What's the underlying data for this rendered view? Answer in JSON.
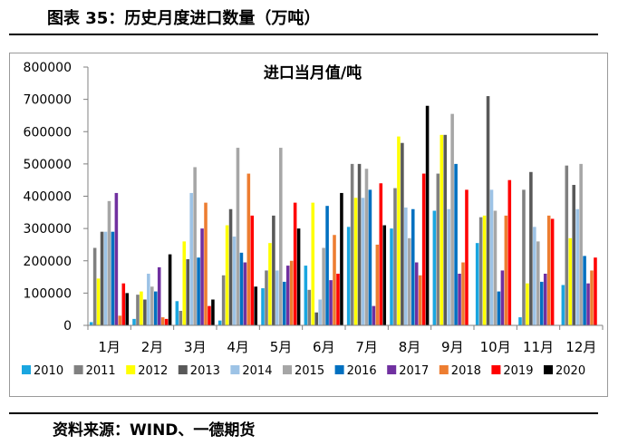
{
  "figure_title": "图表 35：历史月度进口数量（万吨）",
  "source": "资料来源：WIND、一德期货",
  "chart_data": {
    "type": "bar",
    "title": "进口当月值/吨",
    "xlabel": "",
    "ylabel": "",
    "ylim": [
      0,
      800000
    ],
    "yticks": [
      "0",
      "100000",
      "200000",
      "300000",
      "400000",
      "500000",
      "600000",
      "700000",
      "800000"
    ],
    "grid": false,
    "legend_position": "bottom",
    "categories": [
      "1月",
      "2月",
      "3月",
      "4月",
      "5月",
      "6月",
      "7月",
      "8月",
      "9月",
      "10月",
      "11月",
      "12月"
    ],
    "series": [
      {
        "name": "2010",
        "color": "#1aa6e0",
        "values": [
          10000,
          20000,
          75000,
          15000,
          115000,
          185000,
          305000,
          300000,
          355000,
          255000,
          25000,
          125000
        ]
      },
      {
        "name": "2011",
        "color": "#808080",
        "values": [
          240000,
          95000,
          45000,
          155000,
          170000,
          110000,
          500000,
          425000,
          470000,
          335000,
          420000,
          495000
        ]
      },
      {
        "name": "2012",
        "color": "#ffff00",
        "values": [
          145000,
          105000,
          260000,
          310000,
          255000,
          380000,
          395000,
          585000,
          590000,
          340000,
          130000,
          270000
        ]
      },
      {
        "name": "2013",
        "color": "#595959",
        "values": [
          290000,
          80000,
          205000,
          360000,
          340000,
          40000,
          500000,
          565000,
          590000,
          710000,
          475000,
          435000
        ]
      },
      {
        "name": "2014",
        "color": "#9dc3e6",
        "values": [
          290000,
          160000,
          410000,
          275000,
          170000,
          80000,
          395000,
          365000,
          360000,
          420000,
          305000,
          360000
        ]
      },
      {
        "name": "2015",
        "color": "#a6a6a6",
        "values": [
          385000,
          120000,
          490000,
          550000,
          550000,
          240000,
          485000,
          270000,
          655000,
          355000,
          260000,
          500000
        ]
      },
      {
        "name": "2016",
        "color": "#0070c0",
        "values": [
          290000,
          105000,
          210000,
          225000,
          135000,
          370000,
          420000,
          360000,
          500000,
          105000,
          135000,
          215000
        ]
      },
      {
        "name": "2017",
        "color": "#7030a0",
        "values": [
          410000,
          180000,
          300000,
          195000,
          185000,
          140000,
          60000,
          195000,
          160000,
          170000,
          160000,
          130000
        ]
      },
      {
        "name": "2018",
        "color": "#ed7d31",
        "values": [
          30000,
          25000,
          380000,
          470000,
          200000,
          280000,
          250000,
          155000,
          195000,
          340000,
          340000,
          170000
        ]
      },
      {
        "name": "2019",
        "color": "#ff0000",
        "values": [
          130000,
          20000,
          60000,
          340000,
          380000,
          160000,
          440000,
          470000,
          420000,
          450000,
          330000,
          210000
        ]
      },
      {
        "name": "2020",
        "color": "#000000",
        "values": [
          100000,
          220000,
          80000,
          120000,
          300000,
          410000,
          310000,
          680000,
          0,
          0,
          0,
          0
        ]
      }
    ]
  }
}
